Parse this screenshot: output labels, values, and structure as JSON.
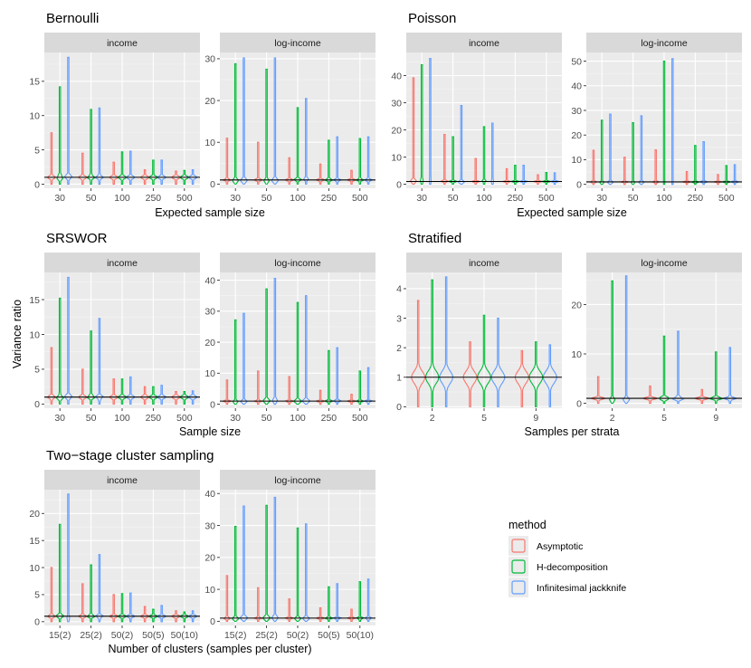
{
  "colors": {
    "Asymptotic": "#F8766D",
    "H-decomposition": "#00BA38",
    "Infinitesimal jackknife": "#619CFF"
  },
  "y_axis_title": "Variance ratio",
  "refline_value": 1,
  "legend": {
    "title": "method",
    "items": [
      "Asymptotic",
      "H-decomposition",
      "Infinitesimal jackknife"
    ]
  },
  "chart_data": [
    {
      "type": "violin",
      "block": "Bernoulli",
      "xlabel": "Expected sample size",
      "categories": [
        "30",
        "50",
        "100",
        "250",
        "500"
      ],
      "panels": [
        {
          "strip": "income",
          "ylim": [
            -0.6,
            19.2
          ],
          "yticks": [
            0,
            5,
            10,
            15
          ],
          "series": [
            {
              "name": "Asymptotic",
              "max": [
                7.5,
                4.5,
                3.2,
                2.1,
                1.9
              ]
            },
            {
              "name": "H-decomposition",
              "max": [
                14.2,
                10.9,
                4.7,
                3.5,
                2.0
              ]
            },
            {
              "name": "Infinitesimal jackknife",
              "max": [
                18.5,
                11.1,
                4.8,
                3.5,
                2.1
              ]
            }
          ]
        },
        {
          "strip": "log-income",
          "ylim": [
            -1.0,
            31.5
          ],
          "yticks": [
            0,
            10,
            20,
            30
          ],
          "series": [
            {
              "name": "Asymptotic",
              "max": [
                11.0,
                10.0,
                6.3,
                4.8,
                3.3
              ]
            },
            {
              "name": "H-decomposition",
              "max": [
                28.8,
                27.5,
                18.3,
                10.5,
                10.9
              ]
            },
            {
              "name": "Infinitesimal jackknife",
              "max": [
                30.2,
                30.2,
                20.5,
                11.3,
                11.3
              ]
            }
          ]
        }
      ]
    },
    {
      "type": "violin",
      "block": "Poisson",
      "xlabel": "Expected sample size",
      "categories": [
        "30",
        "50",
        "100",
        "250",
        "500"
      ],
      "panels": [
        {
          "strip": "income",
          "ylim": [
            -1.5,
            48.5
          ],
          "yticks": [
            0,
            10,
            20,
            30,
            40
          ],
          "series": [
            {
              "name": "Asymptotic",
              "max": [
                39.2,
                18.3,
                9.5,
                5.7,
                3.5
              ]
            },
            {
              "name": "H-decomposition",
              "max": [
                44.0,
                17.5,
                21.2,
                7.0,
                4.3
              ]
            },
            {
              "name": "Infinitesimal jackknife",
              "max": [
                46.3,
                29.0,
                22.5,
                7.0,
                4.2
              ]
            }
          ]
        },
        {
          "strip": "log-income",
          "ylim": [
            -1.6,
            53.5
          ],
          "yticks": [
            0,
            10,
            20,
            30,
            40,
            50
          ],
          "series": [
            {
              "name": "Asymptotic",
              "max": [
                13.8,
                11.0,
                14.0,
                5.2,
                4.0
              ]
            },
            {
              "name": "H-decomposition",
              "max": [
                26.0,
                25.0,
                50.0,
                15.8,
                7.6
              ]
            },
            {
              "name": "Infinitesimal jackknife",
              "max": [
                28.5,
                27.8,
                51.0,
                17.3,
                8.0
              ]
            }
          ]
        }
      ]
    },
    {
      "type": "violin",
      "block": "SRSWOR",
      "xlabel": "Sample size",
      "categories": [
        "30",
        "50",
        "100",
        "250",
        "500"
      ],
      "panels": [
        {
          "strip": "income",
          "ylim": [
            -0.6,
            18.9
          ],
          "yticks": [
            0,
            5,
            10,
            15
          ],
          "series": [
            {
              "name": "Asymptotic",
              "max": [
                8.1,
                5.0,
                3.6,
                2.5,
                1.8
              ]
            },
            {
              "name": "H-decomposition",
              "max": [
                15.2,
                10.5,
                3.6,
                2.5,
                1.8
              ]
            },
            {
              "name": "Infinitesimal jackknife",
              "max": [
                18.2,
                12.3,
                3.9,
                2.7,
                1.9
              ]
            }
          ]
        },
        {
          "strip": "log-income",
          "ylim": [
            -1.3,
            42.5
          ],
          "yticks": [
            0,
            10,
            20,
            30,
            40
          ],
          "series": [
            {
              "name": "Asymptotic",
              "max": [
                7.8,
                10.7,
                8.9,
                4.5,
                3.2
              ]
            },
            {
              "name": "H-decomposition",
              "max": [
                27.2,
                37.2,
                32.8,
                17.3,
                10.7
              ]
            },
            {
              "name": "Infinitesimal jackknife",
              "max": [
                29.3,
                40.6,
                35.0,
                18.2,
                11.8
              ]
            }
          ]
        }
      ]
    },
    {
      "type": "violin",
      "block": "Stratified",
      "xlabel": "Samples per strata",
      "categories": [
        "2",
        "5",
        "9"
      ],
      "panels": [
        {
          "strip": "income",
          "ylim": [
            -0.05,
            4.55
          ],
          "yticks": [
            0,
            1,
            2,
            3,
            4
          ],
          "series": [
            {
              "name": "Asymptotic",
              "max": [
                3.6,
                2.2,
                1.9
              ]
            },
            {
              "name": "H-decomposition",
              "max": [
                4.3,
                3.1,
                2.2
              ]
            },
            {
              "name": "Infinitesimal jackknife",
              "max": [
                4.4,
                3.0,
                2.1
              ]
            }
          ]
        },
        {
          "strip": "log-income",
          "ylim": [
            -1.0,
            26.5
          ],
          "yticks": [
            0,
            10,
            20
          ],
          "series": [
            {
              "name": "Asymptotic",
              "max": [
                5.4,
                3.5,
                2.8
              ]
            },
            {
              "name": "H-decomposition",
              "max": [
                24.8,
                13.6,
                10.4
              ]
            },
            {
              "name": "Infinitesimal jackknife",
              "max": [
                25.8,
                14.6,
                11.3
              ]
            }
          ]
        }
      ]
    },
    {
      "type": "violin",
      "block": "Two−stage cluster sampling",
      "xlabel": "Number of clusters (samples per cluster)",
      "categories": [
        "15(2)",
        "25(2)",
        "50(2)",
        "50(5)",
        "50(10)"
      ],
      "panels": [
        {
          "strip": "income",
          "ylim": [
            -0.7,
            24.4
          ],
          "yticks": [
            0,
            5,
            10,
            15,
            20
          ],
          "series": [
            {
              "name": "Asymptotic",
              "max": [
                10.0,
                7.0,
                5.0,
                2.8,
                2.0
              ]
            },
            {
              "name": "H-decomposition",
              "max": [
                18.0,
                10.5,
                5.2,
                2.3,
                1.8
              ]
            },
            {
              "name": "Infinitesimal jackknife",
              "max": [
                23.6,
                12.4,
                5.3,
                3.0,
                2.0
              ]
            }
          ]
        },
        {
          "strip": "log-income",
          "ylim": [
            -1.3,
            41.2
          ],
          "yticks": [
            0,
            10,
            20,
            30,
            40
          ],
          "series": [
            {
              "name": "Asymptotic",
              "max": [
                14.3,
                10.5,
                7.0,
                4.2,
                3.8
              ]
            },
            {
              "name": "H-decomposition",
              "max": [
                29.7,
                36.3,
                29.2,
                10.8,
                12.4
              ]
            },
            {
              "name": "Infinitesimal jackknife",
              "max": [
                36.1,
                38.8,
                30.5,
                11.8,
                13.2
              ]
            }
          ]
        }
      ]
    }
  ]
}
